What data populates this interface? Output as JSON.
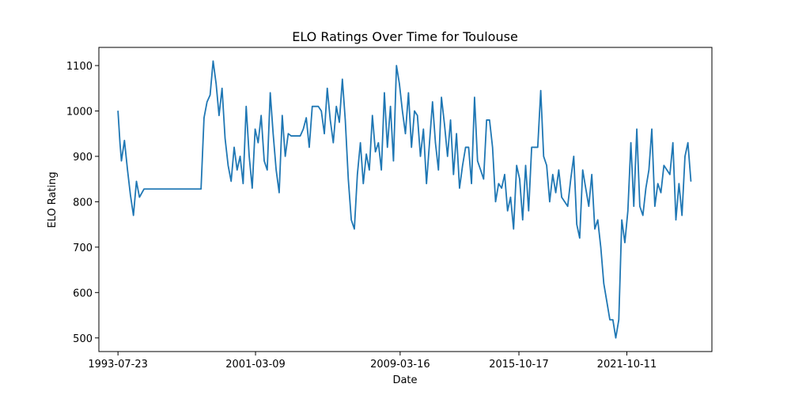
{
  "chart_data": {
    "type": "line",
    "title": "ELO Ratings Over Time for Toulouse",
    "xlabel": "Date",
    "ylabel": "ELO Rating",
    "xlim": [
      "1992-07-01",
      "2026-06-30"
    ],
    "ylim": [
      470,
      1140
    ],
    "x_ticks": [
      "1993-07-23",
      "2001-03-09",
      "2009-03-16",
      "2015-10-17",
      "2021-10-11"
    ],
    "y_ticks": [
      500,
      600,
      700,
      800,
      900,
      1000,
      1100
    ],
    "grid": false,
    "colors": {
      "line": "#1f77b4",
      "axes": "#000000",
      "background": "#ffffff"
    },
    "series": [
      {
        "x": [
          "1993-07-23",
          "1993-09-01",
          "1993-10-01",
          "1993-12-01",
          "1994-02-01",
          "1994-04-01",
          "1994-06-01",
          "1994-08-01",
          "1994-10-01",
          "1995-01-01",
          "1998-03-01",
          "1998-05-01",
          "1998-07-01",
          "1998-09-01",
          "1998-11-01",
          "1999-01-01",
          "1999-03-01",
          "1999-05-01",
          "1999-07-01",
          "1999-09-01",
          "1999-11-01",
          "2000-01-01",
          "2000-03-01",
          "2000-05-01",
          "2000-07-01",
          "2000-09-01",
          "2000-11-01",
          "2001-01-01",
          "2001-03-01",
          "2001-05-01",
          "2001-07-01",
          "2001-09-01",
          "2001-11-01",
          "2002-01-01",
          "2002-03-01",
          "2002-05-01",
          "2002-07-01",
          "2002-09-01",
          "2002-11-01",
          "2003-01-01",
          "2003-03-01",
          "2003-05-01",
          "2003-07-01",
          "2003-09-01",
          "2003-11-01",
          "2004-01-01",
          "2004-03-01",
          "2004-05-01",
          "2004-07-01",
          "2004-09-01",
          "2004-11-01",
          "2005-01-01",
          "2005-03-01",
          "2005-05-01",
          "2005-07-01",
          "2005-09-01",
          "2005-11-01",
          "2006-01-01",
          "2006-03-01",
          "2006-05-01",
          "2006-07-01",
          "2006-09-01",
          "2006-11-01",
          "2007-01-01",
          "2007-03-01",
          "2007-05-01",
          "2007-07-01",
          "2007-09-01",
          "2007-11-01",
          "2008-01-01",
          "2008-03-01",
          "2008-05-01",
          "2008-07-01",
          "2008-09-01",
          "2008-11-01",
          "2009-01-01",
          "2009-03-01",
          "2009-05-01",
          "2009-07-01",
          "2009-09-01",
          "2009-11-01",
          "2010-01-01",
          "2010-03-01",
          "2010-05-01",
          "2010-07-01",
          "2010-09-01",
          "2010-11-01",
          "2011-01-01",
          "2011-03-01",
          "2011-05-01",
          "2011-07-01",
          "2011-09-01",
          "2011-11-01",
          "2012-01-01",
          "2012-03-01",
          "2012-05-01",
          "2012-07-01",
          "2012-09-01",
          "2012-11-01",
          "2013-01-01",
          "2013-03-01",
          "2013-05-01",
          "2013-07-01",
          "2013-09-01",
          "2013-11-01",
          "2014-01-01",
          "2014-03-01",
          "2014-05-01",
          "2014-07-01",
          "2014-09-01",
          "2014-11-01",
          "2015-01-01",
          "2015-03-01",
          "2015-05-01",
          "2015-07-01",
          "2015-09-01",
          "2015-11-01",
          "2016-01-01",
          "2016-03-01",
          "2016-05-01",
          "2016-07-01",
          "2016-09-01",
          "2016-11-01",
          "2017-01-01",
          "2017-03-01",
          "2017-05-01",
          "2017-07-01",
          "2017-09-01",
          "2017-11-01",
          "2018-01-01",
          "2018-03-01",
          "2018-05-01",
          "2018-07-01",
          "2018-09-01",
          "2018-11-01",
          "2019-01-01",
          "2019-03-01",
          "2019-05-01",
          "2019-07-01",
          "2019-09-01",
          "2019-11-01",
          "2020-01-01",
          "2020-03-01",
          "2020-05-01",
          "2020-07-01",
          "2020-09-01",
          "2020-11-01",
          "2021-01-01",
          "2021-03-01",
          "2021-05-01",
          "2021-07-01",
          "2021-09-01",
          "2021-11-01",
          "2022-01-01",
          "2022-03-01",
          "2022-05-01",
          "2022-07-01",
          "2022-09-01",
          "2022-11-01",
          "2023-01-01",
          "2023-03-01",
          "2023-05-01",
          "2023-07-01",
          "2023-09-01",
          "2023-11-01",
          "2024-01-01",
          "2024-03-01",
          "2024-05-01",
          "2024-07-01",
          "2024-09-01",
          "2024-11-01",
          "2025-01-01",
          "2025-03-01",
          "2025-05-01"
        ],
        "values": [
          1000,
          930,
          890,
          935,
          870,
          815,
          770,
          845,
          810,
          828,
          828,
          985,
          1020,
          1035,
          1110,
          1060,
          990,
          1050,
          940,
          880,
          845,
          920,
          870,
          900,
          840,
          1010,
          900,
          830,
          960,
          930,
          990,
          890,
          870,
          1040,
          950,
          870,
          820,
          990,
          900,
          950,
          945,
          945,
          945,
          945,
          960,
          985,
          920,
          1010,
          1010,
          1010,
          1000,
          950,
          1050,
          980,
          930,
          1010,
          975,
          1070,
          980,
          850,
          760,
          740,
          860,
          930,
          840,
          905,
          870,
          990,
          910,
          930,
          870,
          1040,
          920,
          1010,
          890,
          1100,
          1060,
          1000,
          950,
          1040,
          920,
          1000,
          990,
          900,
          960,
          840,
          930,
          1020,
          930,
          870,
          1030,
          970,
          900,
          980,
          860,
          950,
          830,
          880,
          920,
          920,
          840,
          1030,
          890,
          870,
          850,
          980,
          980,
          920,
          800,
          840,
          830,
          860,
          780,
          810,
          740,
          880,
          850,
          760,
          880,
          780,
          920,
          920,
          920,
          1045,
          900,
          880,
          800,
          860,
          820,
          870,
          810,
          800,
          790,
          850,
          900,
          750,
          720,
          870,
          830,
          790,
          860,
          740,
          760,
          700,
          620,
          580,
          540,
          540,
          500,
          540,
          760,
          710,
          780,
          930,
          790,
          960,
          790,
          770,
          830,
          870,
          960,
          790,
          840,
          820,
          880,
          870,
          860,
          930,
          760,
          840,
          770,
          900,
          930,
          845
        ]
      }
    ]
  }
}
